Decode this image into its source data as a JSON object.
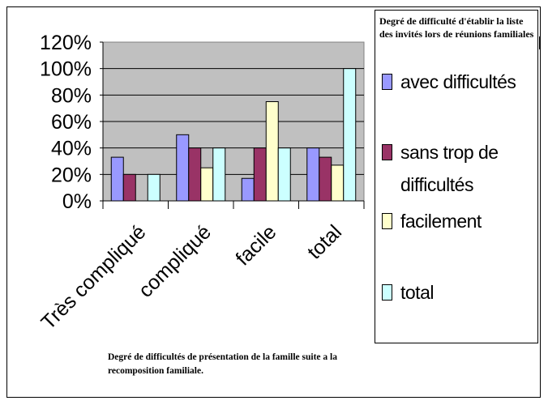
{
  "chart_data": {
    "type": "bar",
    "categories": [
      "Très compliqué",
      "compliqué",
      "facile",
      "total"
    ],
    "series": [
      {
        "name": "avec difficultés",
        "color": "#9999FF",
        "values": [
          33,
          50,
          17,
          40
        ]
      },
      {
        "name": "sans trop de difficultés",
        "color": "#993366",
        "values": [
          20,
          40,
          40,
          33
        ]
      },
      {
        "name": "facilement",
        "color": "#FFFFCC",
        "values": [
          0,
          25,
          75,
          27
        ]
      },
      {
        "name": "total",
        "color": "#CCFFFF",
        "values": [
          20,
          40,
          40,
          100
        ]
      }
    ],
    "ylim": [
      0,
      120
    ],
    "yticks": [
      "0%",
      "20%",
      "40%",
      "60%",
      "80%",
      "100%",
      "120%"
    ],
    "grid": true,
    "plot_background": "#C0C0C0",
    "legend_title": "Degré de difficulté d'établir la liste des invités lors de réunions familiales",
    "legend_placement": "right",
    "caption": "Degré de difficultés de présentation de la famille suite a la recomposition familiale."
  }
}
